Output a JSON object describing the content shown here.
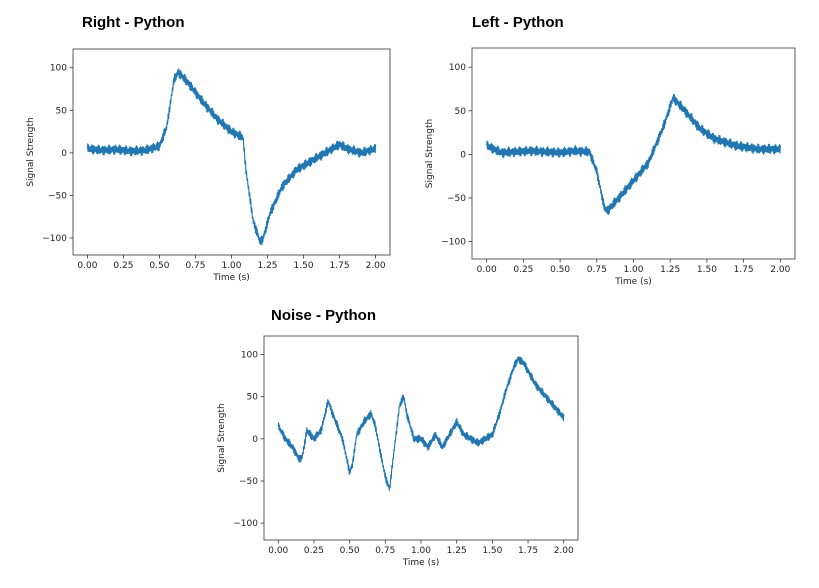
{
  "chart_data": [
    {
      "type": "line",
      "title": "Right - Python",
      "xlabel": "Time (s)",
      "ylabel": "Signal Strength",
      "xlim": [
        -0.1,
        2.1
      ],
      "ylim": [
        -120,
        122
      ],
      "xticks": [
        0.0,
        0.25,
        0.5,
        0.75,
        1.0,
        1.25,
        1.5,
        1.75,
        2.0
      ],
      "xtick_labels": [
        "0.00",
        "0.25",
        "0.50",
        "0.75",
        "1.00",
        "1.25",
        "1.50",
        "1.75",
        "2.00"
      ],
      "yticks": [
        -100,
        -50,
        0,
        50,
        100
      ],
      "ytick_labels": [
        "−100",
        "−50",
        "0",
        "50",
        "100"
      ],
      "grid": false,
      "color": "#1f77b4",
      "series": [
        {
          "x": [
            0.0,
            0.1,
            0.2,
            0.3,
            0.4,
            0.5,
            0.55,
            0.6,
            0.63,
            0.7,
            0.8,
            0.9,
            1.0,
            1.08,
            1.1,
            1.15,
            1.2,
            1.22,
            1.27,
            1.35,
            1.45,
            1.55,
            1.65,
            1.7,
            1.75,
            1.8,
            1.9,
            2.0
          ],
          "y": [
            5,
            3,
            4,
            2,
            3,
            8,
            30,
            85,
            95,
            82,
            60,
            40,
            25,
            18,
            -20,
            -80,
            -105,
            -100,
            -70,
            -40,
            -20,
            -10,
            0,
            5,
            10,
            5,
            0,
            5
          ],
          "noise_amplitude": 6
        }
      ]
    },
    {
      "type": "line",
      "title": "Left - Python",
      "xlabel": "Time (s)",
      "ylabel": "Signal Strength",
      "xlim": [
        -0.1,
        2.1
      ],
      "ylim": [
        -120,
        122
      ],
      "xticks": [
        0.0,
        0.25,
        0.5,
        0.75,
        1.0,
        1.25,
        1.5,
        1.75,
        2.0
      ],
      "xtick_labels": [
        "0.00",
        "0.25",
        "0.50",
        "0.75",
        "1.00",
        "1.25",
        "1.50",
        "1.75",
        "2.00"
      ],
      "yticks": [
        -100,
        -50,
        0,
        50,
        100
      ],
      "ytick_labels": [
        "−100",
        "−50",
        "0",
        "50",
        "100"
      ],
      "grid": false,
      "color": "#1f77b4",
      "series": [
        {
          "x": [
            0.0,
            0.1,
            0.2,
            0.3,
            0.4,
            0.5,
            0.6,
            0.7,
            0.75,
            0.8,
            0.82,
            0.9,
            1.0,
            1.1,
            1.2,
            1.27,
            1.35,
            1.45,
            1.55,
            1.7,
            1.85,
            2.0
          ],
          "y": [
            10,
            2,
            3,
            4,
            3,
            2,
            4,
            3,
            -20,
            -60,
            -65,
            -50,
            -30,
            -10,
            30,
            65,
            50,
            30,
            18,
            10,
            6,
            6
          ],
          "noise_amplitude": 6
        }
      ]
    },
    {
      "type": "line",
      "title": "Noise - Python",
      "xlabel": "Time (s)",
      "ylabel": "Signal Strength",
      "xlim": [
        -0.1,
        2.1
      ],
      "ylim": [
        -120,
        122
      ],
      "xticks": [
        0.0,
        0.25,
        0.5,
        0.75,
        1.0,
        1.25,
        1.5,
        1.75,
        2.0
      ],
      "xtick_labels": [
        "0.00",
        "0.25",
        "0.50",
        "0.75",
        "1.00",
        "1.25",
        "1.50",
        "1.75",
        "2.00"
      ],
      "yticks": [
        -100,
        -50,
        0,
        50,
        100
      ],
      "ytick_labels": [
        "−100",
        "−50",
        "0",
        "50",
        "100"
      ],
      "grid": false,
      "color": "#1f77b4",
      "series": [
        {
          "x": [
            0.0,
            0.05,
            0.1,
            0.15,
            0.17,
            0.2,
            0.25,
            0.3,
            0.35,
            0.38,
            0.45,
            0.5,
            0.52,
            0.55,
            0.6,
            0.65,
            0.68,
            0.72,
            0.75,
            0.78,
            0.8,
            0.85,
            0.88,
            0.9,
            0.95,
            1.0,
            1.05,
            1.1,
            1.15,
            1.2,
            1.25,
            1.3,
            1.35,
            1.4,
            1.45,
            1.5,
            1.55,
            1.6,
            1.65,
            1.68,
            1.72,
            1.8,
            1.9,
            2.0
          ],
          "y": [
            15,
            0,
            -10,
            -25,
            -20,
            10,
            0,
            10,
            45,
            30,
            0,
            -40,
            -30,
            5,
            20,
            30,
            15,
            -20,
            -45,
            -60,
            -30,
            40,
            50,
            30,
            0,
            0,
            -10,
            5,
            -10,
            5,
            20,
            5,
            0,
            -5,
            0,
            5,
            30,
            60,
            85,
            95,
            90,
            65,
            45,
            25
          ],
          "noise_amplitude": 5
        }
      ]
    }
  ]
}
